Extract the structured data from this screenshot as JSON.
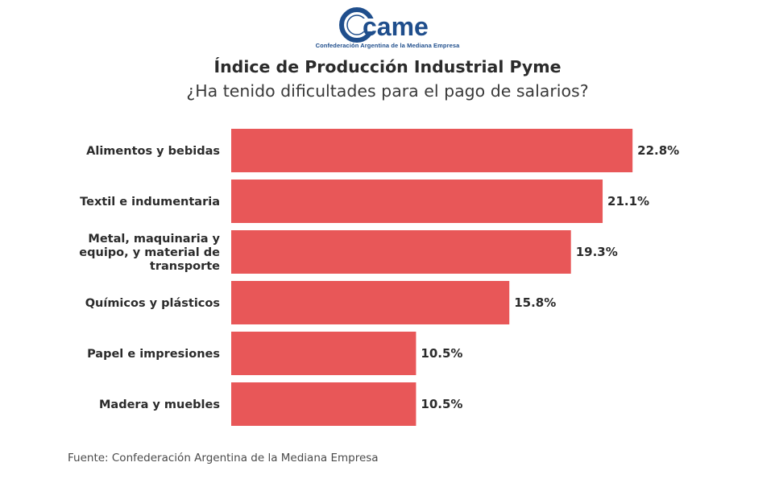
{
  "logo": {
    "text": "came",
    "subtitle": "Confederación Argentina de la Mediana Empresa"
  },
  "colors": {
    "bar": "#e85758",
    "logo": "#1f4e8c",
    "text": "#2b2b2b"
  },
  "chart_data": {
    "type": "bar",
    "orientation": "horizontal",
    "title": "Índice de Producción Industrial Pyme",
    "subtitle": "¿Ha tenido dificultades para el pago de salarios?",
    "categories": [
      "Alimentos y bebidas",
      "Textil e indumentaria",
      "Metal, maquinaria y equipo, y material de transporte",
      "Químicos y plásticos",
      "Papel e impresiones",
      "Madera y muebles"
    ],
    "category_lines": [
      [
        "Alimentos y bebidas"
      ],
      [
        "Textil e indumentaria"
      ],
      [
        "Metal, maquinaria y",
        "equipo, y material de",
        "transporte"
      ],
      [
        "Químicos y plásticos"
      ],
      [
        "Papel e impresiones"
      ],
      [
        "Madera y muebles"
      ]
    ],
    "values": [
      22.8,
      21.1,
      19.3,
      15.8,
      10.5,
      10.5
    ],
    "data_labels": [
      "22.8%",
      "21.1%",
      "19.3%",
      "15.8%",
      "10.5%",
      "10.5%"
    ],
    "unit": "%",
    "grid": false,
    "legend": "none"
  },
  "source": "Fuente: Confederación Argentina de la Mediana Empresa"
}
